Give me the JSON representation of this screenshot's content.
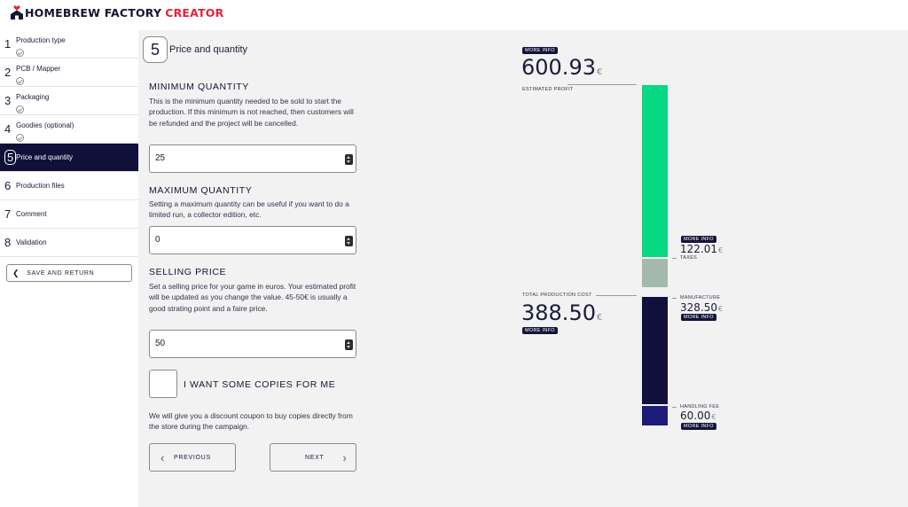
{
  "app": {
    "logo_main": "HOMEBREW FACTORY",
    "logo_accent": "CREATOR",
    "colors": {
      "accent": "#e5213b",
      "navy": "#10103a",
      "profit": "#07d985",
      "taxes": "#a4b9ae",
      "handling": "#1d1b7a"
    }
  },
  "sidebar": {
    "steps": [
      {
        "num": "1",
        "label": "Production type",
        "done": true
      },
      {
        "num": "2",
        "label": "PCB / Mapper",
        "done": true
      },
      {
        "num": "3",
        "label": "Packaging",
        "done": true
      },
      {
        "num": "4",
        "label": "Goodies (optional)",
        "done": true
      },
      {
        "num": "5",
        "label": "Price and quantity",
        "active": true
      },
      {
        "num": "6",
        "label": "Production files"
      },
      {
        "num": "7",
        "label": "Comment"
      },
      {
        "num": "8",
        "label": "Validation"
      }
    ],
    "save_label": "SAVE AND RETURN"
  },
  "main": {
    "step_num": "5",
    "step_title": "Price and quantity",
    "min_qty": {
      "title": "MINIMUM QUANTITY",
      "desc": "This is the minimum quantity needed to be sold to start the production. If this minimum is not reached, then customers will be refunded and the project will be cancelled.",
      "value": "25"
    },
    "max_qty": {
      "title": "MAXIMUM QUANTITY",
      "desc": "Setting a maximum quantity can be useful if you want to do a limited run, a collector edition, etc.",
      "value": "0"
    },
    "price": {
      "title": "SELLING PRICE",
      "desc": "Set a selling price for your game in euros. Your estimated profit will be updated as you change the value. 45-50€ is usually a good strating point and a faire price.",
      "value": "50"
    },
    "copies": {
      "label": "I WANT SOME COPIES FOR ME",
      "desc": "We will give you a discount coupon to buy copies directly from the store during the campaign.",
      "checked": false
    },
    "prev_label": "PREVIOUS",
    "next_label": "NEXT"
  },
  "breakdown": {
    "more_info": "MORE INFO",
    "currency": "€",
    "profit": {
      "value": "600.93",
      "label": "ESTIMATED PROFIT"
    },
    "taxes": {
      "value": "122.01",
      "label": "TAXES"
    },
    "production": {
      "value": "388.50",
      "label": "TOTAL PRODUCTION COST"
    },
    "manufacture": {
      "value": "328.50",
      "label": "MANUFACTURE"
    },
    "handling": {
      "value": "60.00",
      "label": "HANDLING FEE"
    }
  }
}
